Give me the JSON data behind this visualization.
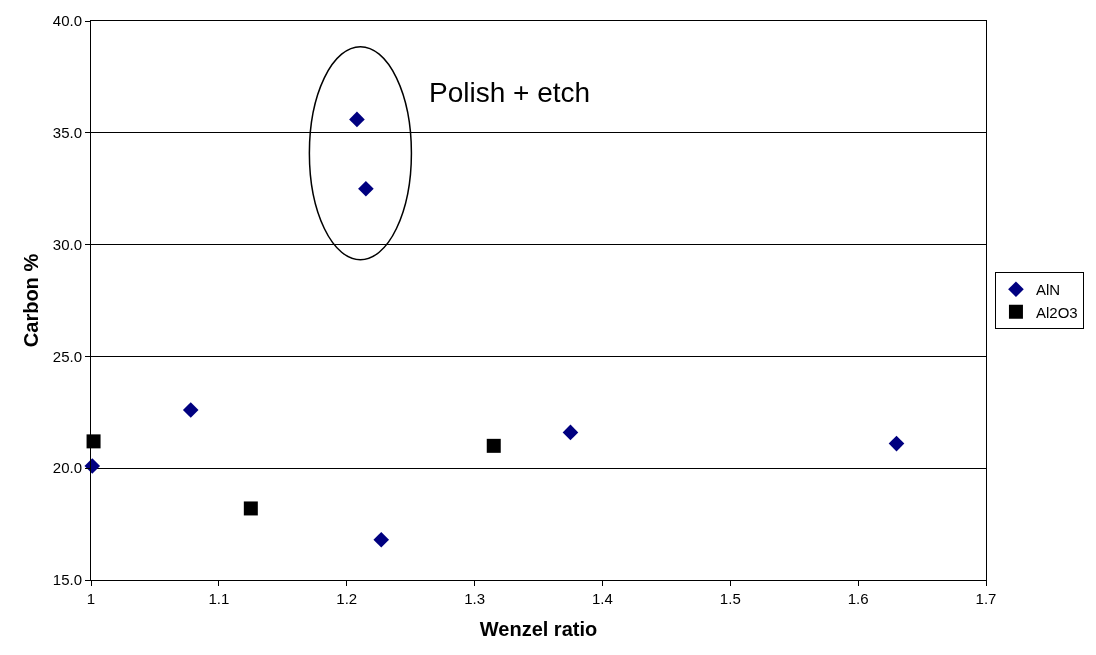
{
  "chart_data": {
    "type": "scatter",
    "xlabel": "Wenzel ratio",
    "ylabel": "Carbon %",
    "annotations": [
      "Polish + etch"
    ],
    "series": [
      {
        "name": "AlN",
        "color": "#000080",
        "marker": "diamond",
        "x": [
          1.001,
          1.078,
          1.208,
          1.215,
          1.227,
          1.375,
          1.63
        ],
        "values": [
          20.1,
          22.6,
          35.6,
          32.5,
          16.8,
          21.6,
          21.1
        ]
      },
      {
        "name": "Al2O3",
        "color": "#000000",
        "marker": "square",
        "x": [
          1.002,
          1.125,
          1.315
        ],
        "values": [
          21.2,
          18.2,
          21.0
        ]
      }
    ],
    "xlim": [
      1,
      1.7
    ],
    "xticks": [
      1,
      1.1,
      1.2,
      1.3,
      1.4,
      1.5,
      1.6,
      1.7
    ],
    "ylim": [
      15,
      40
    ],
    "yticks": [
      {
        "value": 15,
        "label": "15.0"
      },
      {
        "value": 20,
        "label": "20.0"
      },
      {
        "value": 25,
        "label": "25.0"
      },
      {
        "value": 30,
        "label": "30.0"
      },
      {
        "value": 35,
        "label": "35.0"
      },
      {
        "value": 40,
        "label": "40.0"
      }
    ],
    "grid": "y",
    "legend": "right"
  }
}
